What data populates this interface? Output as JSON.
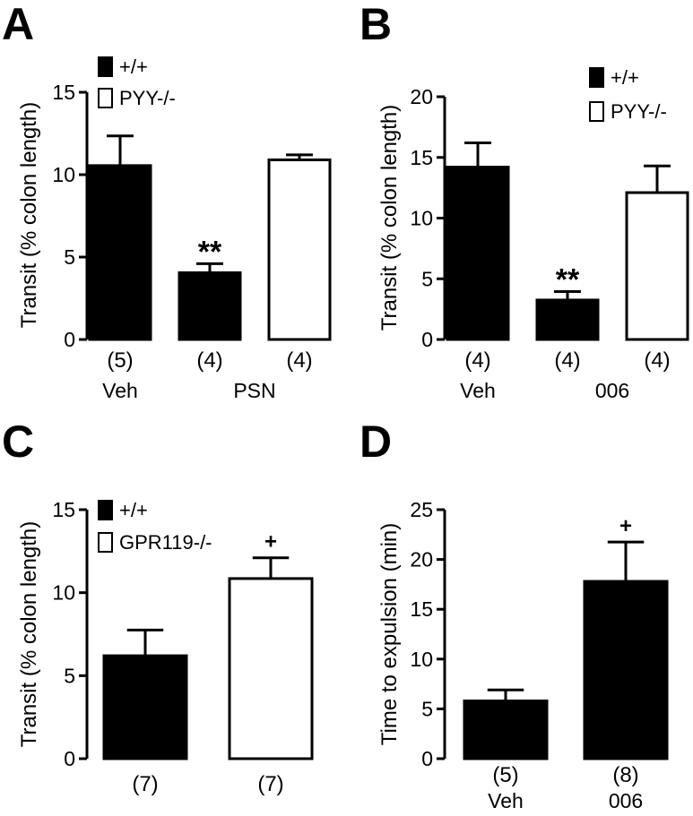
{
  "chart_data": [
    {
      "panel": "A",
      "type": "bar",
      "ylabel": "Transit (% colon length)",
      "ylim": [
        0,
        15
      ],
      "yticks": [
        0,
        5,
        10,
        15
      ],
      "categories": [
        "(5)",
        "(4)",
        "(4)"
      ],
      "values": [
        10.55,
        4.05,
        10.9
      ],
      "errors": [
        1.8,
        0.55,
        0.3
      ],
      "bar_fills": [
        "#000000",
        "#000000",
        "#ffffff"
      ],
      "annotations": [
        "",
        "**",
        ""
      ],
      "group_labels": [
        {
          "text": "Veh",
          "bars": [
            0
          ]
        },
        {
          "text": "PSN",
          "bars": [
            1,
            2
          ]
        }
      ],
      "legend": [
        {
          "label": "+/+",
          "fill": "#000000"
        },
        {
          "label": "PYY-/-",
          "fill": "#ffffff"
        }
      ],
      "legend_position": "top-left"
    },
    {
      "panel": "B",
      "type": "bar",
      "ylabel": "Transit (% colon length)",
      "ylim": [
        0,
        20
      ],
      "yticks": [
        0,
        5,
        10,
        15,
        20
      ],
      "categories": [
        "(4)",
        "(4)",
        "(4)"
      ],
      "values": [
        14.2,
        3.25,
        12.1
      ],
      "errors": [
        2.0,
        0.7,
        2.2
      ],
      "bar_fills": [
        "#000000",
        "#000000",
        "#ffffff"
      ],
      "annotations": [
        "",
        "**",
        ""
      ],
      "group_labels": [
        {
          "text": "Veh",
          "bars": [
            0
          ]
        },
        {
          "text": "006",
          "bars": [
            1,
            2
          ]
        }
      ],
      "legend": [
        {
          "label": "+/+",
          "fill": "#000000"
        },
        {
          "label": "PYY-/-",
          "fill": "#ffffff"
        }
      ],
      "legend_position": "top-right"
    },
    {
      "panel": "C",
      "type": "bar",
      "ylabel": "Transit (% colon length)",
      "ylim": [
        0,
        15
      ],
      "yticks": [
        0,
        5,
        10,
        15
      ],
      "categories": [
        "(7)",
        "(7)"
      ],
      "values": [
        6.2,
        10.85
      ],
      "errors": [
        1.55,
        1.25
      ],
      "bar_fills": [
        "#000000",
        "#ffffff"
      ],
      "annotations": [
        "",
        "+"
      ],
      "group_labels": [],
      "legend": [
        {
          "label": "+/+",
          "fill": "#000000"
        },
        {
          "label": "GPR119-/-",
          "fill": "#ffffff"
        }
      ],
      "legend_position": "top-left"
    },
    {
      "panel": "D",
      "type": "bar",
      "ylabel": "Time to expulsion (min)",
      "ylim": [
        0,
        25
      ],
      "yticks": [
        0,
        5,
        10,
        15,
        20,
        25
      ],
      "categories": [
        "(5)",
        "(8)"
      ],
      "values": [
        5.8,
        17.8
      ],
      "errors": [
        1.1,
        3.95
      ],
      "bar_fills": [
        "#000000",
        "#000000"
      ],
      "annotations": [
        "",
        "+"
      ],
      "group_labels": [
        {
          "text": "Veh",
          "bars": [
            0
          ]
        },
        {
          "text": "006",
          "bars": [
            1
          ]
        }
      ],
      "legend": [],
      "legend_position": ""
    }
  ]
}
